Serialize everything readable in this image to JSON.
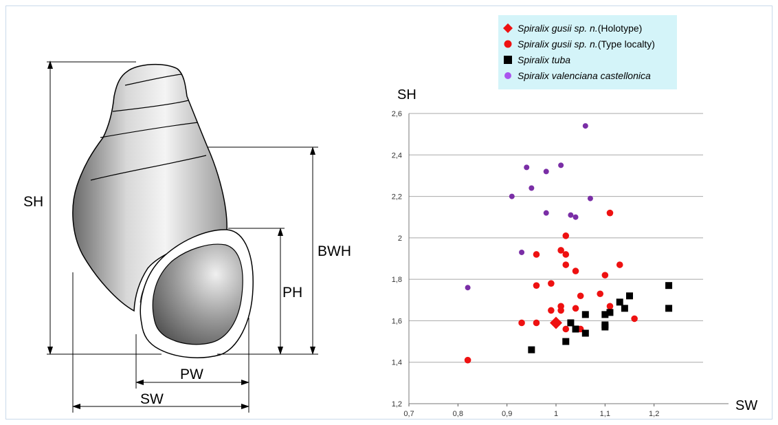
{
  "diagram": {
    "labels": {
      "sh": "SH",
      "bwh": "BWH",
      "ph": "PH",
      "pw": "PW",
      "sw": "SW"
    }
  },
  "legend": {
    "items": [
      {
        "marker": "diamond",
        "color": "#ee1111",
        "name": "Spiralix gusii sp. n.",
        "suffix": " (Holotype)"
      },
      {
        "marker": "circle",
        "color": "#ee1111",
        "name": "Spiralix gusii sp. n.",
        "suffix": " (Type localty)"
      },
      {
        "marker": "square",
        "color": "#000000",
        "name": "Spiralix tuba",
        "suffix": ""
      },
      {
        "marker": "circle",
        "color": "#aa55ee",
        "name": "Spiralix valenciana castellonica",
        "suffix": ""
      }
    ]
  },
  "chart_data": {
    "type": "scatter",
    "xlabel": "SW",
    "ylabel": "SH",
    "xlim": [
      0.7,
      1.3
    ],
    "ylim": [
      1.2,
      2.6
    ],
    "xticks": [
      "0,7",
      "0,8",
      "0,9",
      "1",
      "1,1",
      "1,2"
    ],
    "yticks": [
      "1,2",
      "1,4",
      "1,6",
      "1,8",
      "2",
      "2,2",
      "2,4",
      "2,6"
    ],
    "grid": "horizontal",
    "series": [
      {
        "name": "Spiralix gusii sp. n. (Holotype)",
        "marker": "diamond",
        "color": "#ee1111",
        "points": [
          [
            1.0,
            1.59
          ]
        ]
      },
      {
        "name": "Spiralix gusii sp. n. (Type localty)",
        "marker": "circle",
        "color": "#ee1111",
        "points": [
          [
            0.82,
            1.41
          ],
          [
            0.93,
            1.59
          ],
          [
            0.96,
            1.59
          ],
          [
            0.96,
            1.77
          ],
          [
            0.96,
            1.92
          ],
          [
            0.99,
            1.78
          ],
          [
            0.99,
            1.65
          ],
          [
            1.01,
            1.67
          ],
          [
            1.01,
            1.65
          ],
          [
            1.01,
            1.94
          ],
          [
            1.02,
            2.01
          ],
          [
            1.02,
            1.92
          ],
          [
            1.02,
            1.87
          ],
          [
            1.02,
            1.56
          ],
          [
            1.04,
            1.84
          ],
          [
            1.04,
            1.66
          ],
          [
            1.05,
            1.72
          ],
          [
            1.05,
            1.56
          ],
          [
            1.09,
            1.73
          ],
          [
            1.1,
            1.82
          ],
          [
            1.11,
            2.12
          ],
          [
            1.11,
            1.67
          ],
          [
            1.13,
            1.87
          ],
          [
            1.16,
            1.61
          ]
        ]
      },
      {
        "name": "Spiralix tuba",
        "marker": "square",
        "color": "#000000",
        "points": [
          [
            0.95,
            1.46
          ],
          [
            1.02,
            1.5
          ],
          [
            1.03,
            1.59
          ],
          [
            1.04,
            1.56
          ],
          [
            1.06,
            1.63
          ],
          [
            1.06,
            1.54
          ],
          [
            1.1,
            1.63
          ],
          [
            1.1,
            1.58
          ],
          [
            1.1,
            1.57
          ],
          [
            1.11,
            1.64
          ],
          [
            1.13,
            1.69
          ],
          [
            1.14,
            1.66
          ],
          [
            1.15,
            1.72
          ],
          [
            1.23,
            1.77
          ],
          [
            1.23,
            1.66
          ]
        ]
      },
      {
        "name": "Spiralix valenciana castellonica",
        "marker": "circle",
        "color": "#7a2ea6",
        "points": [
          [
            0.82,
            1.76
          ],
          [
            0.91,
            2.2
          ],
          [
            0.93,
            1.93
          ],
          [
            0.94,
            2.34
          ],
          [
            0.95,
            2.24
          ],
          [
            0.98,
            2.32
          ],
          [
            0.98,
            2.12
          ],
          [
            1.01,
            2.35
          ],
          [
            1.03,
            2.11
          ],
          [
            1.04,
            2.1
          ],
          [
            1.06,
            2.54
          ],
          [
            1.07,
            2.19
          ]
        ]
      }
    ]
  }
}
